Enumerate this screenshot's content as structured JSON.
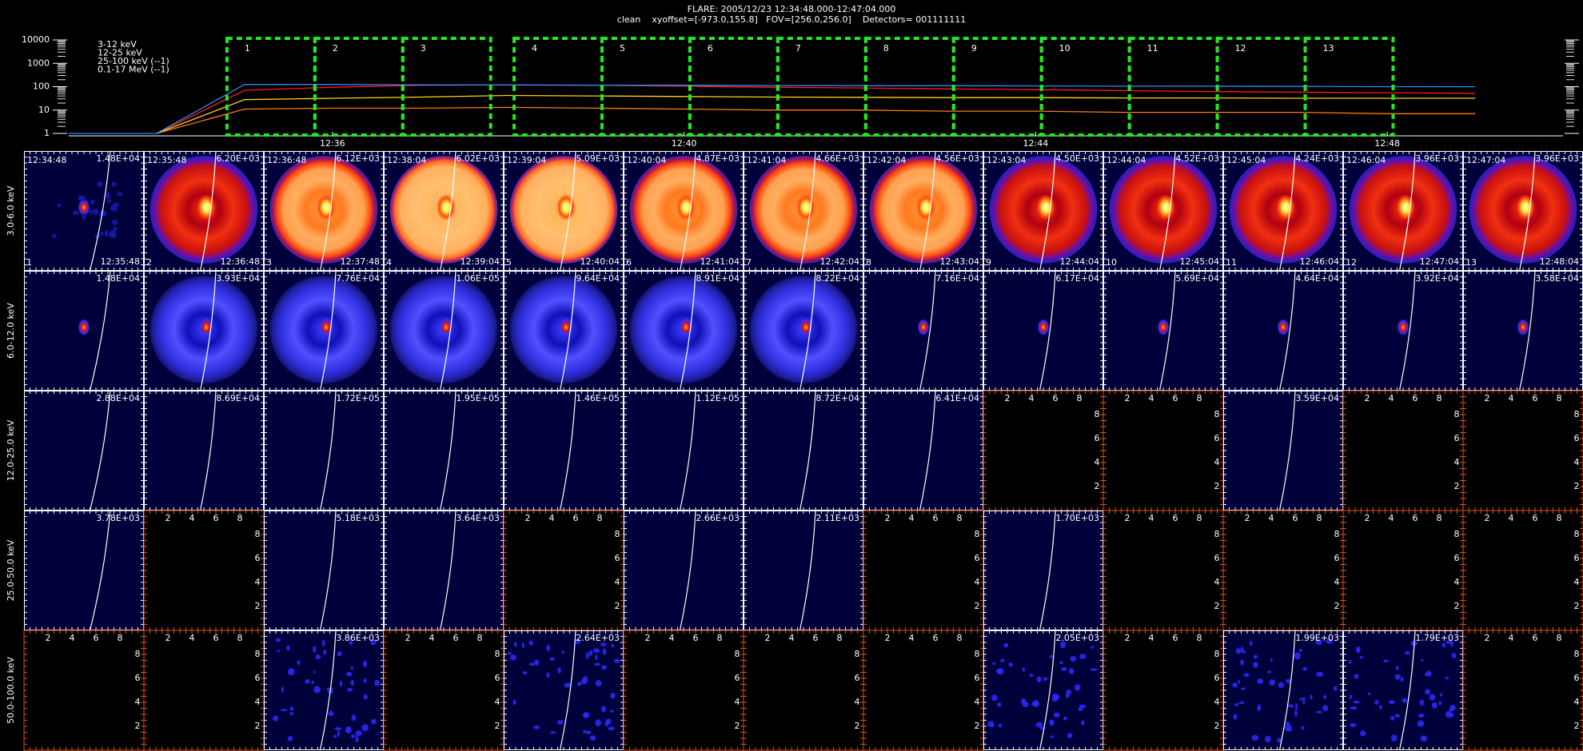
{
  "header": {
    "title": "FLARE: 2005/12/23 12:34:48.000-12:47:04.000",
    "subtitle": "clean    xyoffset=[-973.0,155.8]   FOV=[256.0,256.0]    Detectors= 001111111"
  },
  "chart_data": {
    "type": "line",
    "x": [
      "12:33",
      "12:34",
      "12:35",
      "12:36",
      "12:37",
      "12:38",
      "12:39",
      "12:40",
      "12:41",
      "12:42",
      "12:43",
      "12:44",
      "12:45",
      "12:46",
      "12:47",
      "12:48",
      "12:49"
    ],
    "xlim": [
      "12:33",
      "12:50"
    ],
    "xticks": [
      "12:36",
      "12:40",
      "12:44",
      "12:48"
    ],
    "ylim": [
      1,
      10000
    ],
    "yticks": [
      1,
      10,
      100,
      1000,
      10000
    ],
    "log_y": true,
    "legend": "upper left",
    "series": [
      {
        "name": "3-12 keV",
        "color": "#ff1a1a",
        "values": [
          null,
          1,
          70,
          95,
          115,
          120,
          115,
          105,
          95,
          88,
          80,
          75,
          68,
          62,
          58,
          55,
          52
        ]
      },
      {
        "name": "12-25 keV",
        "color": "#ff7a1a",
        "values": [
          null,
          1,
          11,
          12,
          12,
          13,
          12,
          11,
          10,
          10,
          9,
          9,
          8,
          8,
          8,
          7,
          7
        ]
      },
      {
        "name": "25-100 keV (--1)",
        "color": "#ffd21a",
        "values": [
          null,
          1,
          28,
          32,
          36,
          42,
          40,
          38,
          36,
          35,
          34,
          34,
          33,
          33,
          32,
          32,
          32
        ]
      },
      {
        "name": "0.1-17 MeV (--1)",
        "color": "#2f86ff",
        "values": [
          1,
          1,
          125,
          125,
          120,
          118,
          115,
          115,
          112,
          110,
          110,
          108,
          105,
          105,
          102,
          100,
          100
        ]
      }
    ]
  },
  "intervals": [
    {
      "number": "1",
      "start": "12:34:48",
      "end": "12:35:48"
    },
    {
      "number": "2",
      "start": "12:35:48",
      "end": "12:36:48"
    },
    {
      "number": "3",
      "start": "12:36:48",
      "end": "12:37:48"
    },
    {
      "number": "4",
      "start": "12:38:04",
      "end": "12:39:04"
    },
    {
      "number": "5",
      "start": "12:39:04",
      "end": "12:40:04"
    },
    {
      "number": "6",
      "start": "12:40:04",
      "end": "12:41:04"
    },
    {
      "number": "7",
      "start": "12:41:04",
      "end": "12:42:04"
    },
    {
      "number": "8",
      "start": "12:42:04",
      "end": "12:43:04"
    },
    {
      "number": "9",
      "start": "12:43:04",
      "end": "12:44:04"
    },
    {
      "number": "10",
      "start": "12:44:04",
      "end": "12:45:04"
    },
    {
      "number": "11",
      "start": "12:45:04",
      "end": "12:46:04"
    },
    {
      "number": "12",
      "start": "12:46:04",
      "end": "12:47:04"
    },
    {
      "number": "13",
      "start": "12:47:04",
      "end": "12:48:04"
    }
  ],
  "bands": [
    {
      "label": "3.0-6.0 keV",
      "peaks": [
        "1.48E+04",
        "6.20E+03",
        "6.12E+03",
        "6.02E+03",
        "5.09E+03",
        "4.87E+03",
        "4.66E+03",
        "4.56E+03",
        "4.50E+03",
        "4.52E+03",
        "4.24E+03",
        "3.96E+03",
        "3.96E+03"
      ]
    },
    {
      "label": "6.0-12.0 keV",
      "peaks": [
        "1.48E+04",
        "3.93E+04",
        "7.76E+04",
        "1.06E+05",
        "9.64E+04",
        "8.91E+04",
        "8.22E+04",
        "7.16E+04",
        "6.17E+04",
        "5.69E+04",
        "4.64E+04",
        "3.92E+04",
        "3.58E+04"
      ]
    },
    {
      "label": "12.0-25.0 keV",
      "peaks": [
        "2.88E+04",
        "8.69E+04",
        "1.72E+05",
        "1.95E+05",
        "1.46E+05",
        "1.12E+05",
        "8.72E+04",
        "6.41E+04",
        null,
        null,
        "3.59E+04",
        null,
        null
      ]
    },
    {
      "label": "25.0-50.0 keV",
      "peaks": [
        "3.78E+03",
        null,
        "5.18E+03",
        "3.64E+03",
        null,
        "2.66E+03",
        "2.11E+03",
        null,
        "1.70E+03",
        null,
        null,
        null,
        null
      ]
    },
    {
      "label": "50.0-100.0 keV",
      "peaks": [
        null,
        null,
        "3.86E+03",
        null,
        "2.64E+03",
        null,
        null,
        null,
        "2.05E+03",
        null,
        "1.99E+03",
        "1.79E+03",
        null
      ]
    }
  ],
  "empty_axis": {
    "lim": [
      0,
      10
    ],
    "ticks": [
      2,
      4,
      6,
      8
    ]
  }
}
